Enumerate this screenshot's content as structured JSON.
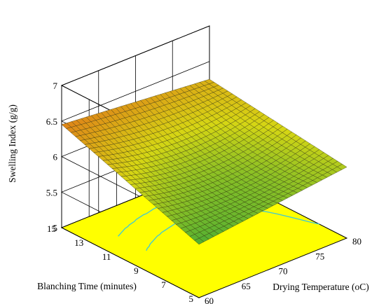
{
  "chart_data": {
    "type": "surface3d",
    "title": "",
    "xlabel": "Drying Temperature (oC)",
    "ylabel": "Blanching Time (minutes)",
    "zlabel": "Swelling Index (g/g)",
    "x_ticks": [
      "60",
      "65",
      "70",
      "75",
      "80"
    ],
    "y_ticks": [
      "5",
      "7",
      "9",
      "11",
      "13",
      "15"
    ],
    "z_ticks": [
      "5",
      "5.5",
      "6",
      "6.5",
      "7"
    ],
    "x_range": [
      60,
      80
    ],
    "y_range": [
      5,
      15
    ],
    "z_range": [
      5,
      7
    ],
    "corner_values": [
      {
        "x": 60,
        "y": 5,
        "z": 5.75
      },
      {
        "x": 80,
        "y": 5,
        "z": 6.0
      },
      {
        "x": 60,
        "y": 15,
        "z": 6.45
      },
      {
        "x": 80,
        "y": 15,
        "z": 6.25
      }
    ],
    "center_value": {
      "x": 70,
      "y": 10,
      "z": 5.95
    },
    "grid": true,
    "floor_color": "#ffff00",
    "contour_color": "#3cc8d8",
    "surface_low_color": "#3aa838",
    "surface_high_color": "#e07818"
  }
}
